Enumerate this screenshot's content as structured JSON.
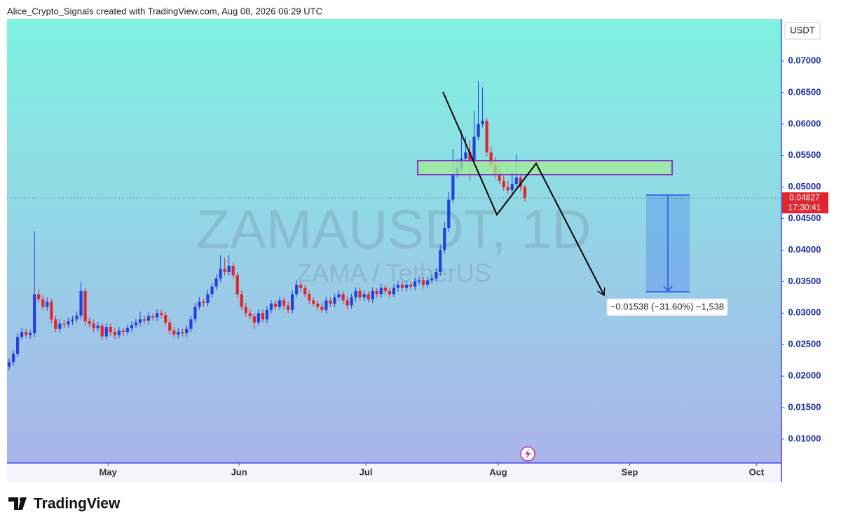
{
  "header": "Alice_Crypto_Signals created with TradingView.com, Aug 08, 2026 06:29 UTC",
  "brand": "TradingView",
  "chart_data": {
    "type": "candlestick",
    "title": "ZAMAUSDT, 1D",
    "subtitle": "ZAMA / TetherUS",
    "currency": "USDT",
    "up_color": "#2340e0",
    "down_color": "#e0262f",
    "open": [
      0.0215,
      0.0222,
      0.0235,
      0.0262,
      0.027,
      0.0265,
      0.0268,
      0.033,
      0.0322,
      0.031,
      0.0318,
      0.029,
      0.0275,
      0.0283,
      0.0282,
      0.0287,
      0.029,
      0.0296,
      0.0335,
      0.0287,
      0.0283,
      0.0276,
      0.028,
      0.0263,
      0.0278,
      0.027,
      0.0265,
      0.0272,
      0.027,
      0.0276,
      0.0281,
      0.0285,
      0.029,
      0.0288,
      0.0295,
      0.0293,
      0.03,
      0.0297,
      0.0285,
      0.0272,
      0.0266,
      0.027,
      0.0268,
      0.0275,
      0.029,
      0.031,
      0.0318,
      0.0316,
      0.033,
      0.0342,
      0.0355,
      0.037,
      0.0365,
      0.0375,
      0.036,
      0.033,
      0.031,
      0.03,
      0.0295,
      0.0285,
      0.03,
      0.029,
      0.0305,
      0.0315,
      0.031,
      0.032,
      0.0312,
      0.0305,
      0.033,
      0.0345,
      0.034,
      0.033,
      0.032,
      0.0315,
      0.031,
      0.0305,
      0.032,
      0.0315,
      0.0325,
      0.033,
      0.032,
      0.0312,
      0.0325,
      0.0335,
      0.0325,
      0.033,
      0.0322,
      0.0335,
      0.033,
      0.034,
      0.0335,
      0.033,
      0.034,
      0.0345,
      0.034,
      0.0345,
      0.0342,
      0.035,
      0.0352,
      0.0345,
      0.0352,
      0.0355,
      0.0365,
      0.04,
      0.0435,
      0.048,
      0.052,
      0.053,
      0.0545,
      0.0555,
      0.054,
      0.058,
      0.06,
      0.0605,
      0.0555,
      0.0535,
      0.052,
      0.051,
      0.05,
      0.0495,
      0.0505,
      0.0515,
      0.05
    ],
    "high": [
      0.0228,
      0.0241,
      0.0268,
      0.0276,
      0.0275,
      0.0274,
      0.043,
      0.0338,
      0.0328,
      0.0325,
      0.0323,
      0.0296,
      0.029,
      0.0289,
      0.0293,
      0.0296,
      0.0302,
      0.035,
      0.034,
      0.0293,
      0.029,
      0.0286,
      0.0285,
      0.0284,
      0.0283,
      0.0276,
      0.0278,
      0.0277,
      0.0282,
      0.0287,
      0.0291,
      0.0302,
      0.0296,
      0.0301,
      0.03,
      0.0306,
      0.0305,
      0.0302,
      0.029,
      0.0278,
      0.0276,
      0.0275,
      0.0281,
      0.0296,
      0.0316,
      0.0325,
      0.0323,
      0.0337,
      0.0348,
      0.0362,
      0.0392,
      0.0388,
      0.0392,
      0.038,
      0.0365,
      0.0336,
      0.0316,
      0.0306,
      0.03,
      0.0306,
      0.0305,
      0.0311,
      0.0321,
      0.032,
      0.0326,
      0.0325,
      0.0318,
      0.0336,
      0.0352,
      0.035,
      0.0345,
      0.0336,
      0.0325,
      0.032,
      0.0316,
      0.0326,
      0.0325,
      0.0331,
      0.0336,
      0.0335,
      0.0326,
      0.0331,
      0.0341,
      0.034,
      0.0336,
      0.0335,
      0.0341,
      0.034,
      0.0346,
      0.0345,
      0.034,
      0.0346,
      0.0351,
      0.035,
      0.0351,
      0.035,
      0.0356,
      0.0358,
      0.0357,
      0.0358,
      0.0361,
      0.0371,
      0.0408,
      0.0445,
      0.0492,
      0.056,
      0.0545,
      0.059,
      0.058,
      0.0575,
      0.062,
      0.0668,
      0.0658,
      0.061,
      0.0565,
      0.0548,
      0.053,
      0.0518,
      0.051,
      0.0525,
      0.0552,
      0.0522,
      0.0503
    ],
    "low": [
      0.0209,
      0.0216,
      0.023,
      0.0257,
      0.026,
      0.0259,
      0.0262,
      0.0316,
      0.0305,
      0.0304,
      0.0284,
      0.027,
      0.0269,
      0.0276,
      0.0277,
      0.0281,
      0.0285,
      0.029,
      0.0281,
      0.0278,
      0.027,
      0.0271,
      0.0257,
      0.0258,
      0.0264,
      0.0259,
      0.026,
      0.0264,
      0.0265,
      0.027,
      0.0276,
      0.0279,
      0.0283,
      0.0282,
      0.0288,
      0.0287,
      0.0292,
      0.028,
      0.0266,
      0.0261,
      0.026,
      0.0263,
      0.0262,
      0.027,
      0.0284,
      0.0305,
      0.031,
      0.0311,
      0.0324,
      0.0337,
      0.0349,
      0.036,
      0.0359,
      0.0355,
      0.0324,
      0.0305,
      0.0294,
      0.029,
      0.0275,
      0.028,
      0.0285,
      0.0284,
      0.03,
      0.0304,
      0.0305,
      0.0306,
      0.03,
      0.0299,
      0.0325,
      0.0334,
      0.0325,
      0.0314,
      0.031,
      0.0304,
      0.03,
      0.0299,
      0.031,
      0.0309,
      0.032,
      0.0314,
      0.0306,
      0.0307,
      0.0319,
      0.032,
      0.0319,
      0.0317,
      0.0316,
      0.0325,
      0.0324,
      0.033,
      0.0324,
      0.0325,
      0.0334,
      0.0335,
      0.0334,
      0.0337,
      0.0336,
      0.0345,
      0.0339,
      0.034,
      0.0346,
      0.035,
      0.0359,
      0.0394,
      0.0429,
      0.0474,
      0.0515,
      0.0524,
      0.054,
      0.051,
      0.0534,
      0.0574,
      0.0595,
      0.0549,
      0.053,
      0.0514,
      0.0505,
      0.0494,
      0.0489,
      0.049,
      0.0499,
      0.0494,
      0.0477
    ],
    "close": [
      0.0222,
      0.0235,
      0.0262,
      0.027,
      0.0265,
      0.0268,
      0.033,
      0.0322,
      0.031,
      0.0318,
      0.029,
      0.0275,
      0.0283,
      0.0282,
      0.0287,
      0.029,
      0.0296,
      0.0335,
      0.0287,
      0.0283,
      0.0276,
      0.028,
      0.0263,
      0.0278,
      0.027,
      0.0265,
      0.0272,
      0.027,
      0.0276,
      0.0281,
      0.0285,
      0.029,
      0.0288,
      0.0295,
      0.0293,
      0.03,
      0.0297,
      0.0285,
      0.0272,
      0.0266,
      0.027,
      0.0268,
      0.0275,
      0.029,
      0.031,
      0.0318,
      0.0316,
      0.033,
      0.0342,
      0.0355,
      0.037,
      0.0365,
      0.0375,
      0.036,
      0.033,
      0.031,
      0.03,
      0.0295,
      0.0285,
      0.03,
      0.029,
      0.0305,
      0.0315,
      0.031,
      0.032,
      0.0312,
      0.0305,
      0.033,
      0.0345,
      0.034,
      0.033,
      0.032,
      0.0315,
      0.031,
      0.0305,
      0.032,
      0.0315,
      0.0325,
      0.033,
      0.032,
      0.0312,
      0.0325,
      0.0335,
      0.0325,
      0.033,
      0.0322,
      0.0335,
      0.033,
      0.034,
      0.0335,
      0.033,
      0.034,
      0.0345,
      0.034,
      0.0345,
      0.0342,
      0.035,
      0.0352,
      0.0345,
      0.0352,
      0.0355,
      0.0365,
      0.04,
      0.0435,
      0.048,
      0.052,
      0.053,
      0.0545,
      0.0555,
      0.054,
      0.058,
      0.06,
      0.0605,
      0.0555,
      0.0535,
      0.052,
      0.051,
      0.05,
      0.0495,
      0.0505,
      0.0515,
      0.05,
      0.0483
    ],
    "xlim": [
      -0.5,
      182.7
    ],
    "xticks": [
      {
        "value": 23.4,
        "label": "May"
      },
      {
        "value": 54.4,
        "label": "Jun"
      },
      {
        "value": 84.4,
        "label": "Jul"
      },
      {
        "value": 115.7,
        "label": "Aug"
      },
      {
        "value": 146.8,
        "label": "Sep"
      },
      {
        "value": 176.8,
        "label": "Oct"
      }
    ],
    "ylim": [
      0.00621,
      0.07668
    ],
    "yticks": [
      {
        "value": 0.01,
        "label": "0.01000"
      },
      {
        "value": 0.015,
        "label": "0.01500"
      },
      {
        "value": 0.02,
        "label": "0.02000"
      },
      {
        "value": 0.025,
        "label": "0.02500"
      },
      {
        "value": 0.03,
        "label": "0.03000"
      },
      {
        "value": 0.035,
        "label": "0.03500"
      },
      {
        "value": 0.04,
        "label": "0.04000"
      },
      {
        "value": 0.045,
        "label": "0.04500"
      },
      {
        "value": 0.05,
        "label": "0.05000"
      },
      {
        "value": 0.055,
        "label": "0.05500"
      },
      {
        "value": 0.06,
        "label": "0.06000"
      },
      {
        "value": 0.065,
        "label": "0.06500"
      },
      {
        "value": 0.07,
        "label": "0.07000"
      }
    ],
    "last_price": 0.04827,
    "countdown": "17:30:41",
    "annotation": "−0.01538 (−31.60%) −1,538"
  }
}
